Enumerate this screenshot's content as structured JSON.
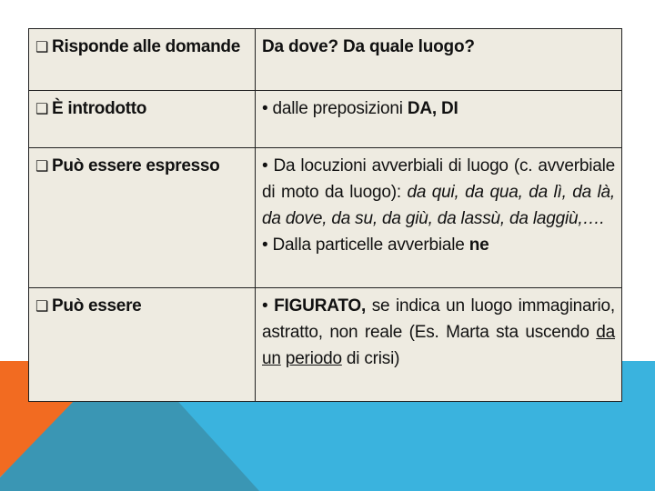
{
  "colors": {
    "orange": "#f26b21",
    "teal_dark": "#3a96b4",
    "blue": "#3ab3de",
    "cell_bg": "#eeebe1"
  },
  "bullet_icon": "❑",
  "rows": [
    {
      "label": "Risponde alle domande",
      "right": [
        [
          {
            "t": "Da dove? Da quale luogo?",
            "s": "b"
          }
        ]
      ]
    },
    {
      "label": "È introdotto",
      "right": [
        [
          {
            "t": "• dalle preposizioni ",
            "s": ""
          },
          {
            "t": "DA, DI",
            "s": "b"
          }
        ]
      ]
    },
    {
      "label": "Può essere espresso",
      "right": [
        [
          {
            "t": "• Da locuzioni avverbiali di luogo (c. avverbiale di moto da luogo): ",
            "s": ""
          },
          {
            "t": "da qui, da qua, da lì, da là, da dove, da su, da giù, da lassù, da laggiù,….",
            "s": "i"
          }
        ],
        [
          {
            "t": "• Dalla particelle avverbiale ",
            "s": ""
          },
          {
            "t": "ne",
            "s": "b"
          }
        ]
      ]
    },
    {
      "label": "Può essere",
      "right": [
        [
          {
            "t": "• ",
            "s": ""
          },
          {
            "t": "FIGURATO,",
            "s": "b"
          },
          {
            "t": " se indica un luogo immaginario, astratto, non reale (Es. Marta sta uscendo ",
            "s": ""
          },
          {
            "t": "da",
            "s": "u"
          },
          {
            "t": " ",
            "s": ""
          },
          {
            "t": "un",
            "s": "u"
          },
          {
            "t": " ",
            "s": ""
          },
          {
            "t": "periodo",
            "s": "u"
          },
          {
            "t": " di crisi)",
            "s": ""
          }
        ]
      ]
    }
  ]
}
